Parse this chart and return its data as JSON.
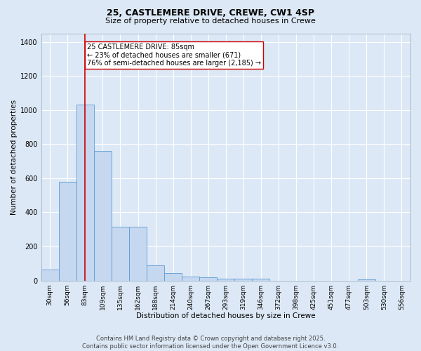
{
  "title_line1": "25, CASTLEMERE DRIVE, CREWE, CW1 4SP",
  "title_line2": "Size of property relative to detached houses in Crewe",
  "xlabel": "Distribution of detached houses by size in Crewe",
  "ylabel": "Number of detached properties",
  "bar_color": "#c5d8f0",
  "bar_edge_color": "#5b9bd5",
  "background_color": "#dce8f5",
  "grid_color": "#ffffff",
  "categories": [
    "30sqm",
    "56sqm",
    "83sqm",
    "109sqm",
    "135sqm",
    "162sqm",
    "188sqm",
    "214sqm",
    "240sqm",
    "267sqm",
    "293sqm",
    "319sqm",
    "346sqm",
    "372sqm",
    "398sqm",
    "425sqm",
    "451sqm",
    "477sqm",
    "503sqm",
    "530sqm",
    "556sqm"
  ],
  "values": [
    65,
    580,
    1030,
    760,
    315,
    315,
    90,
    45,
    25,
    20,
    10,
    10,
    10,
    0,
    0,
    0,
    0,
    0,
    5,
    0,
    0
  ],
  "vline_x": 2,
  "vline_color": "#cc0000",
  "annotation_text": "25 CASTLEMERE DRIVE: 85sqm\n← 23% of detached houses are smaller (671)\n76% of semi-detached houses are larger (2,185) →",
  "annotation_box_color": "#ffffff",
  "annotation_box_edge": "#cc0000",
  "ylim": [
    0,
    1450
  ],
  "yticks": [
    0,
    200,
    400,
    600,
    800,
    1000,
    1200,
    1400
  ],
  "footer_line1": "Contains HM Land Registry data © Crown copyright and database right 2025.",
  "footer_line2": "Contains public sector information licensed under the Open Government Licence v3.0.",
  "title_fontsize": 9,
  "subtitle_fontsize": 8,
  "tick_fontsize": 6.5,
  "axis_label_fontsize": 7.5,
  "annotation_fontsize": 7,
  "footer_fontsize": 6
}
